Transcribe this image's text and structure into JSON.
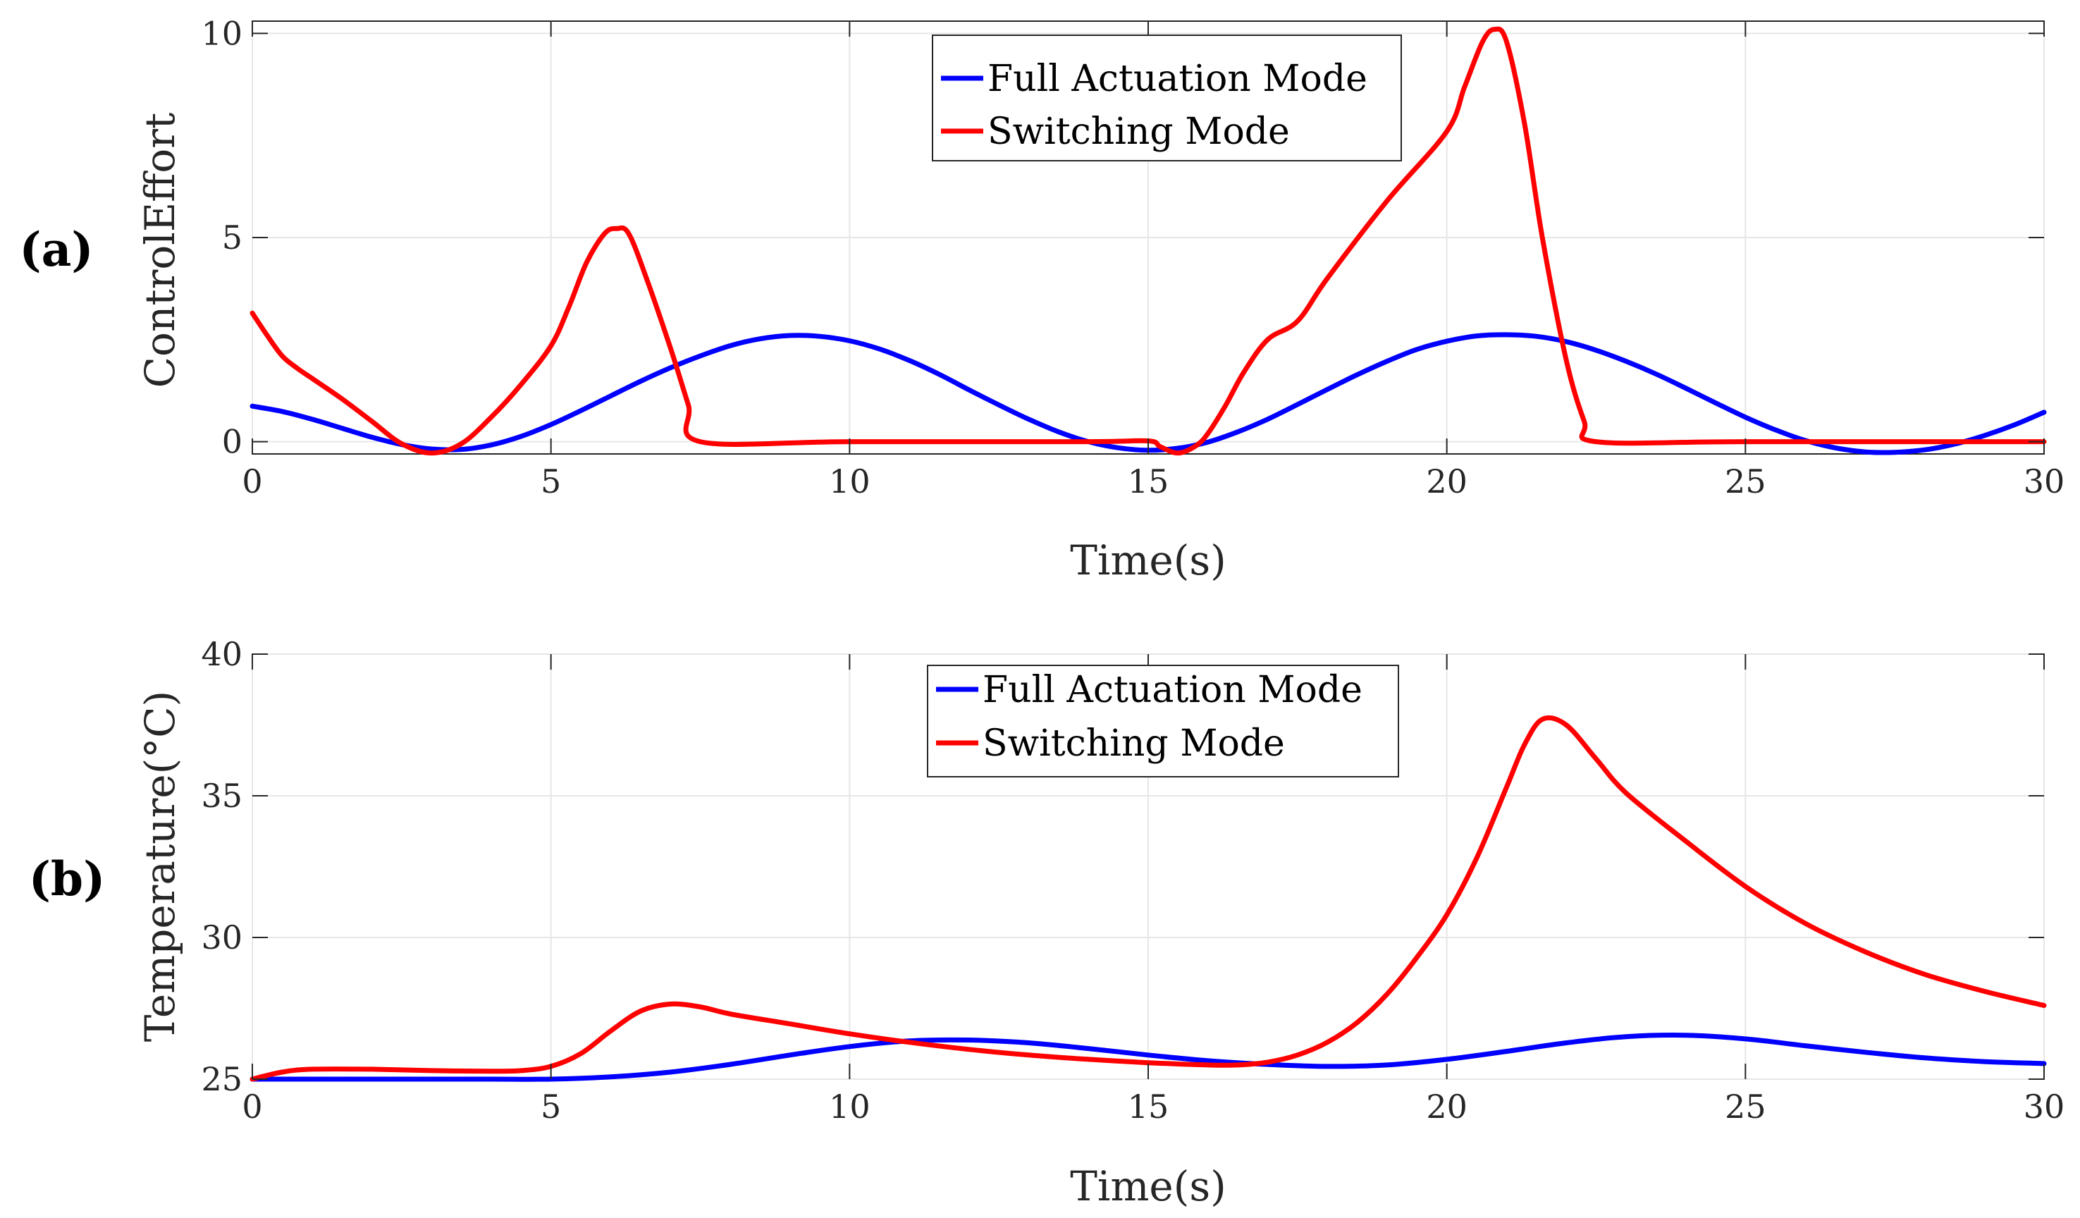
{
  "chart_data": [
    {
      "type": "line",
      "panel_label": "(a)",
      "title": "",
      "xlabel": "Time(s)",
      "ylabel": "ControlEffort",
      "xlim": [
        0,
        30
      ],
      "ylim": [
        -0.3,
        10.3
      ],
      "xticks": [
        0,
        5,
        10,
        15,
        20,
        25,
        30
      ],
      "yticks": [
        0,
        5,
        10
      ],
      "grid": true,
      "legend_position": "top-center",
      "series": [
        {
          "name": "Full Actuation Mode",
          "color": "#0000ff",
          "x": [
            0,
            0.5,
            1,
            1.5,
            2,
            2.5,
            3,
            3.5,
            4,
            4.5,
            5,
            5.5,
            6,
            6.5,
            7,
            7.5,
            8,
            8.5,
            9,
            9.5,
            10,
            10.5,
            11,
            11.5,
            12,
            12.5,
            13,
            13.5,
            14,
            14.5,
            15,
            15.5,
            16,
            16.5,
            17,
            17.5,
            18,
            18.5,
            19,
            19.5,
            20,
            20.5,
            21,
            21.5,
            22,
            22.5,
            23,
            23.5,
            24,
            24.5,
            25,
            25.5,
            26,
            26.5,
            27,
            27.5,
            28,
            28.5,
            29,
            29.5,
            30
          ],
          "values": [
            0.87,
            0.74,
            0.55,
            0.33,
            0.11,
            -0.07,
            -0.18,
            -0.19,
            -0.08,
            0.13,
            0.42,
            0.76,
            1.12,
            1.48,
            1.81,
            2.1,
            2.35,
            2.52,
            2.6,
            2.58,
            2.47,
            2.27,
            1.99,
            1.65,
            1.27,
            0.9,
            0.55,
            0.24,
            0.0,
            -0.15,
            -0.21,
            -0.16,
            -0.01,
            0.24,
            0.55,
            0.91,
            1.28,
            1.64,
            1.97,
            2.26,
            2.46,
            2.59,
            2.62,
            2.58,
            2.45,
            2.24,
            1.97,
            1.66,
            1.31,
            0.95,
            0.6,
            0.29,
            0.03,
            -0.15,
            -0.25,
            -0.26,
            -0.2,
            -0.06,
            0.15,
            0.41,
            0.72
          ]
        },
        {
          "name": "Switching Mode",
          "color": "#ff0000",
          "x": [
            0,
            0.25,
            0.5,
            0.75,
            1,
            1.5,
            2,
            2.5,
            3,
            3.5,
            4,
            4.5,
            5,
            5.3,
            5.6,
            5.9,
            6.1,
            6.3,
            6.6,
            7,
            7.3,
            7.5,
            10,
            14,
            15,
            15.2,
            15.5,
            15.8,
            16,
            16.3,
            16.6,
            17,
            17.5,
            18,
            19,
            20,
            20.3,
            20.6,
            20.8,
            21,
            21.3,
            21.6,
            22,
            22.3,
            22.5,
            25,
            30
          ],
          "values": [
            3.15,
            2.6,
            2.1,
            1.8,
            1.55,
            1.05,
            0.5,
            -0.05,
            -0.28,
            -0.05,
            0.6,
            1.4,
            2.35,
            3.3,
            4.4,
            5.1,
            5.22,
            5.1,
            4.0,
            2.3,
            0.9,
            0.0,
            0.0,
            0.0,
            0.02,
            -0.12,
            -0.28,
            -0.1,
            0.2,
            0.9,
            1.7,
            2.5,
            2.95,
            4.0,
            5.9,
            7.6,
            8.7,
            9.8,
            10.1,
            9.8,
            7.8,
            5.0,
            2.0,
            0.5,
            0.0,
            0.0,
            0.0
          ]
        }
      ]
    },
    {
      "type": "line",
      "panel_label": "(b)",
      "title": "",
      "xlabel": "Time(s)",
      "ylabel": "Temperature(°C)",
      "xlim": [
        0,
        30
      ],
      "ylim": [
        25,
        40
      ],
      "xticks": [
        0,
        5,
        10,
        15,
        20,
        25,
        30
      ],
      "yticks": [
        25,
        30,
        35,
        40
      ],
      "grid": true,
      "legend_position": "top-center",
      "series": [
        {
          "name": "Full Actuation Mode",
          "color": "#0000ff",
          "x": [
            0,
            1,
            2,
            3,
            4,
            5,
            6,
            7,
            8,
            9,
            10,
            11,
            12,
            13,
            14,
            15,
            16,
            17,
            18,
            19,
            20,
            21,
            22,
            23,
            24,
            25,
            26,
            27,
            28,
            29,
            30
          ],
          "values": [
            25.0,
            25.0,
            25.0,
            25.0,
            25.0,
            25.0,
            25.08,
            25.25,
            25.52,
            25.85,
            26.15,
            26.35,
            26.38,
            26.28,
            26.08,
            25.85,
            25.65,
            25.52,
            25.45,
            25.5,
            25.7,
            25.98,
            26.28,
            26.5,
            26.55,
            26.42,
            26.18,
            25.95,
            25.75,
            25.62,
            25.55
          ]
        },
        {
          "name": "Switching Mode",
          "color": "#ff0000",
          "x": [
            0,
            0.5,
            1,
            2,
            3,
            4,
            4.5,
            5,
            5.5,
            6,
            6.5,
            7,
            7.5,
            8,
            9,
            10,
            11,
            12,
            13,
            14,
            15,
            16,
            16.5,
            17,
            17.5,
            18,
            18.5,
            19,
            19.5,
            20,
            20.5,
            21,
            21.3,
            21.6,
            22,
            22.5,
            23,
            24,
            25,
            26,
            27,
            28,
            29,
            30
          ],
          "values": [
            25.0,
            25.25,
            25.35,
            25.35,
            25.3,
            25.28,
            25.3,
            25.45,
            25.9,
            26.7,
            27.4,
            27.65,
            27.55,
            27.3,
            26.95,
            26.6,
            26.3,
            26.05,
            25.85,
            25.7,
            25.58,
            25.5,
            25.5,
            25.6,
            25.85,
            26.3,
            27.0,
            28.0,
            29.3,
            30.8,
            32.8,
            35.3,
            36.8,
            37.7,
            37.5,
            36.3,
            35.1,
            33.4,
            31.8,
            30.5,
            29.5,
            28.7,
            28.1,
            27.6
          ]
        }
      ]
    }
  ]
}
